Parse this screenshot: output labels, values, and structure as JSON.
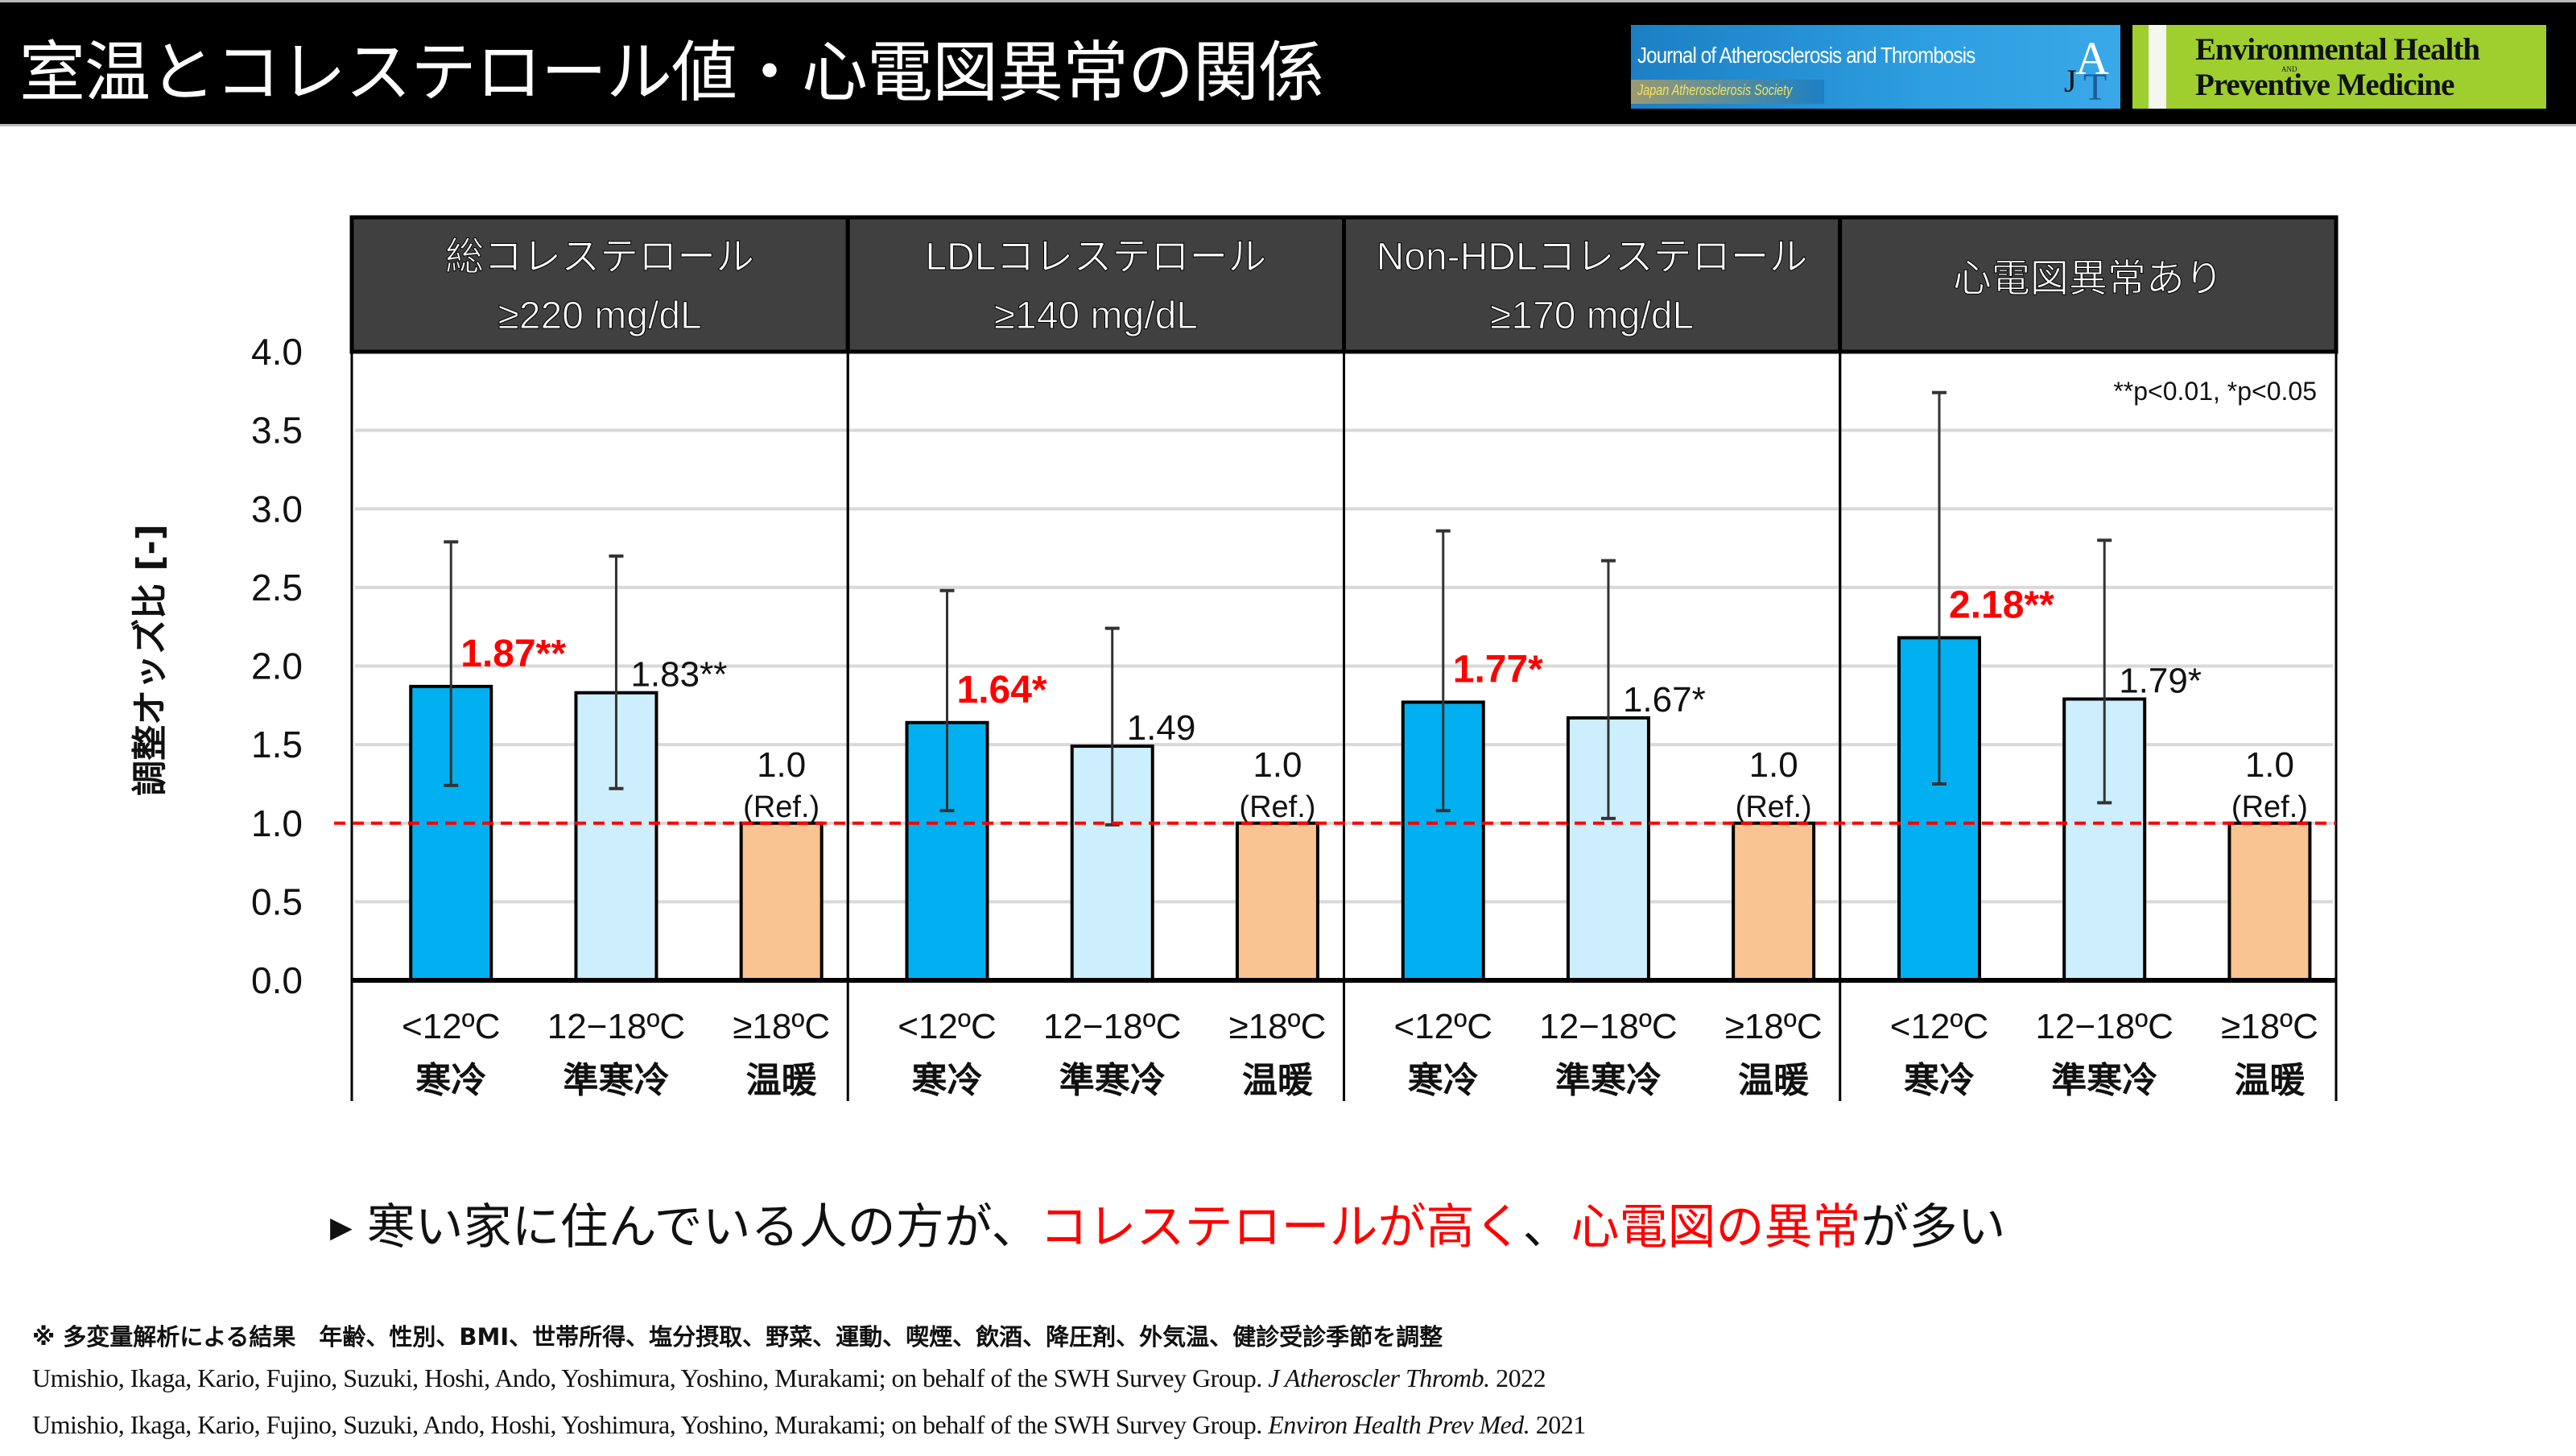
{
  "header": {
    "title": "室温とコレステロール値・心電図異常の関係",
    "logo_jat": {
      "name": "Journal of Atherosclerosis and Thrombosis",
      "society": "Japan Atherosclerosis Society",
      "mark": "JAT"
    },
    "logo_ehpm": {
      "line1": "Environmental Health",
      "and": "AND",
      "line2": "Preventive Medicine"
    }
  },
  "colors": {
    "cold": "#00b0f0",
    "semi_cold": "#cdeefc",
    "warm": "#f9c491",
    "significant_label": "#ff0000",
    "reference_line": "#ff0000",
    "panel_header_bg": "#404040"
  },
  "chart_data": {
    "type": "bar",
    "ylabel": "調整オッズ比 [-]",
    "ylim": [
      0,
      4.0
    ],
    "yticks": [
      "0.0",
      "0.5",
      "1.0",
      "1.5",
      "2.0",
      "2.5",
      "3.0",
      "3.5",
      "4.0"
    ],
    "grid": true,
    "reference_line": 1.0,
    "significance_note": "**p<0.01, *p<0.05",
    "categories": [
      {
        "range": "<12ºC",
        "name": "寒冷"
      },
      {
        "range": "12−18ºC",
        "name": "準寒冷"
      },
      {
        "range": "≥18ºC",
        "name": "温暖"
      }
    ],
    "panels": [
      {
        "title_line1": "総コレステロール",
        "title_line2": "≥220 mg/dL",
        "bars": [
          {
            "value": 1.87,
            "ci_low": 1.24,
            "ci_high": 2.79,
            "label": "1.87**",
            "highlight": true
          },
          {
            "value": 1.83,
            "ci_low": 1.22,
            "ci_high": 2.7,
            "label": "1.83**",
            "highlight": false
          },
          {
            "value": 1.0,
            "label": "1.0",
            "ref_label": "(Ref.)",
            "highlight": false
          }
        ]
      },
      {
        "title_line1": "LDLコレステロール",
        "title_line2": "≥140 mg/dL",
        "bars": [
          {
            "value": 1.64,
            "ci_low": 1.08,
            "ci_high": 2.48,
            "label": "1.64*",
            "highlight": true
          },
          {
            "value": 1.49,
            "ci_low": 0.99,
            "ci_high": 2.24,
            "label": "1.49",
            "highlight": false
          },
          {
            "value": 1.0,
            "label": "1.0",
            "ref_label": "(Ref.)",
            "highlight": false
          }
        ]
      },
      {
        "title_line1": "Non-HDLコレステロール",
        "title_line2": "≥170 mg/dL",
        "bars": [
          {
            "value": 1.77,
            "ci_low": 1.08,
            "ci_high": 2.86,
            "label": "1.77*",
            "highlight": true
          },
          {
            "value": 1.67,
            "ci_low": 1.03,
            "ci_high": 2.67,
            "label": "1.67*",
            "highlight": false
          },
          {
            "value": 1.0,
            "label": "1.0",
            "ref_label": "(Ref.)",
            "highlight": false
          }
        ]
      },
      {
        "title_line1": "心電図異常あり",
        "title_line2": "",
        "bars": [
          {
            "value": 2.18,
            "ci_low": 1.25,
            "ci_high": 3.74,
            "label": "2.18**",
            "highlight": true
          },
          {
            "value": 1.79,
            "ci_low": 1.13,
            "ci_high": 2.8,
            "label": "1.79*",
            "highlight": false
          },
          {
            "value": 1.0,
            "label": "1.0",
            "ref_label": "(Ref.)",
            "highlight": false
          }
        ]
      }
    ]
  },
  "summary": {
    "bullet": "▶",
    "part1": "寒い家に住んでいる人の方が、",
    "part2": "コレステロールが高く",
    "part3": "、",
    "part4": "心電図の異常",
    "part5": "が多い"
  },
  "footnotes": {
    "note": "※ 多変量解析による結果　年齢、性別、BMI、世帯所得、塩分摂取、野菜、運動、喫煙、飲酒、降圧剤、外気温、健診受診季節を調整",
    "citation1_authors": "Umishio, Ikaga, Kario, Fujino, Suzuki, Hoshi, Ando, Yoshimura, Yoshino, Murakami; on behalf of the SWH Survey Group. ",
    "citation1_journal": "J Atheroscler Thromb.",
    "citation1_year": " 2022",
    "citation2_authors": "Umishio, Ikaga, Kario, Fujino, Suzuki, Ando, Hoshi, Yoshimura, Yoshino, Murakami; on behalf of the SWH Survey Group. ",
    "citation2_journal": "Environ Health Prev Med.",
    "citation2_year": " 2021"
  }
}
